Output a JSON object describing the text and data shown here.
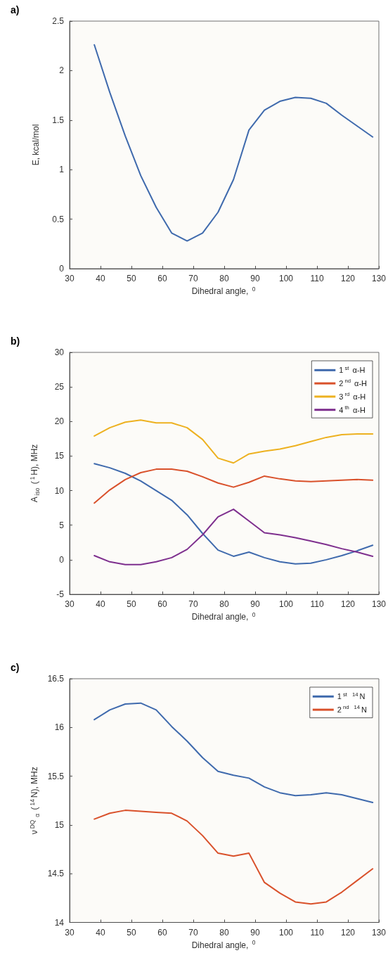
{
  "chart_data": [
    {
      "type": "line",
      "title": "a)",
      "xlabel": "Dihedral angle, $^{0}$",
      "ylabel": "E, kcal/mol",
      "x": [
        38,
        43,
        48,
        53,
        58,
        63,
        68,
        73,
        78,
        83,
        88,
        93,
        98,
        103,
        108,
        113,
        118,
        123,
        128
      ],
      "xlim": [
        30,
        130
      ],
      "xticks": [
        30,
        40,
        50,
        60,
        70,
        80,
        90,
        100,
        110,
        120,
        130
      ],
      "ylim": [
        0,
        2.5
      ],
      "yticks": [
        0,
        0.5,
        1,
        1.5,
        2,
        2.5
      ],
      "grid": false,
      "legend": false,
      "marker": "none",
      "line_style": "solid",
      "series": [
        {
          "color": "#3f6aad",
          "values": [
            2.26,
            1.78,
            1.34,
            0.94,
            0.62,
            0.36,
            0.28,
            0.36,
            0.57,
            0.9,
            1.4,
            1.6,
            1.69,
            1.73,
            1.72,
            1.67,
            1.55,
            1.44,
            1.33
          ]
        }
      ]
    },
    {
      "type": "line",
      "title": "b)",
      "xlabel": "Dihedral angle, $^{0}$",
      "ylabel": "A$_{iso}$ ($^{1}$H), MHz",
      "x": [
        38,
        43,
        48,
        53,
        58,
        63,
        68,
        73,
        78,
        83,
        88,
        93,
        98,
        103,
        108,
        113,
        118,
        123,
        128
      ],
      "xlim": [
        30,
        130
      ],
      "xticks": [
        30,
        40,
        50,
        60,
        70,
        80,
        90,
        100,
        110,
        120,
        130
      ],
      "ylim": [
        -5,
        30
      ],
      "yticks": [
        -5,
        0,
        5,
        10,
        15,
        20,
        25,
        30
      ],
      "grid": false,
      "legend": "top right",
      "marker": "none",
      "line_style": "solid",
      "series": [
        {
          "name": "1$^{st}$ α-H",
          "color": "#3f6aad",
          "values": [
            13.9,
            13.3,
            12.5,
            11.4,
            10.0,
            8.6,
            6.5,
            3.8,
            1.4,
            0.5,
            1.1,
            0.3,
            -0.3,
            -0.6,
            -0.5,
            0.0,
            0.6,
            1.3,
            2.1
          ]
        },
        {
          "name": "2$^{nd}$ α-H",
          "color": "#d9512b",
          "values": [
            8.2,
            10.1,
            11.6,
            12.6,
            13.1,
            13.1,
            12.8,
            12.0,
            11.1,
            10.5,
            11.2,
            12.1,
            11.7,
            11.4,
            11.3,
            11.4,
            11.5,
            11.6,
            11.5
          ]
        },
        {
          "name": "3$^{rd}$ α-H",
          "color": "#edb120",
          "values": [
            17.9,
            19.1,
            19.9,
            20.2,
            19.8,
            19.8,
            19.1,
            17.4,
            14.7,
            14.0,
            15.3,
            15.7,
            16.0,
            16.5,
            17.1,
            17.7,
            18.1,
            18.2,
            18.2
          ]
        },
        {
          "name": "4$^{th}$ α-H",
          "color": "#7e2f8e",
          "values": [
            0.6,
            -0.3,
            -0.7,
            -0.7,
            -0.3,
            0.3,
            1.5,
            3.6,
            6.2,
            7.3,
            5.6,
            3.9,
            3.6,
            3.2,
            2.7,
            2.2,
            1.6,
            1.1,
            0.5
          ]
        }
      ]
    },
    {
      "type": "line",
      "title": "c)",
      "xlabel": "Dihedral angle, $^{0}$",
      "ylabel": "ν$^{DQ}$$_{α}$ ($^{14}$N), MHz",
      "x": [
        38,
        43,
        48,
        53,
        58,
        63,
        68,
        73,
        78,
        83,
        88,
        93,
        98,
        103,
        108,
        113,
        118,
        123,
        128
      ],
      "xlim": [
        30,
        130
      ],
      "xticks": [
        30,
        40,
        50,
        60,
        70,
        80,
        90,
        100,
        110,
        120,
        130
      ],
      "ylim": [
        14,
        16.5
      ],
      "yticks": [
        14,
        14.5,
        15,
        15.5,
        16,
        16.5
      ],
      "grid": false,
      "legend": "top right",
      "marker": "none",
      "line_style": "solid",
      "series": [
        {
          "name": "1$^{st}$ $^{14}$N",
          "color": "#3f6aad",
          "values": [
            16.08,
            16.18,
            16.24,
            16.25,
            16.18,
            16.01,
            15.86,
            15.69,
            15.55,
            15.51,
            15.48,
            15.39,
            15.33,
            15.3,
            15.31,
            15.33,
            15.31,
            15.27,
            15.23
          ]
        },
        {
          "name": "2$^{nd}$ $^{14}$N",
          "color": "#d9512b",
          "values": [
            15.06,
            15.12,
            15.15,
            15.14,
            15.13,
            15.12,
            15.04,
            14.89,
            14.71,
            14.68,
            14.71,
            14.41,
            14.3,
            14.21,
            14.19,
            14.21,
            14.31,
            14.43,
            14.55
          ]
        }
      ]
    }
  ]
}
